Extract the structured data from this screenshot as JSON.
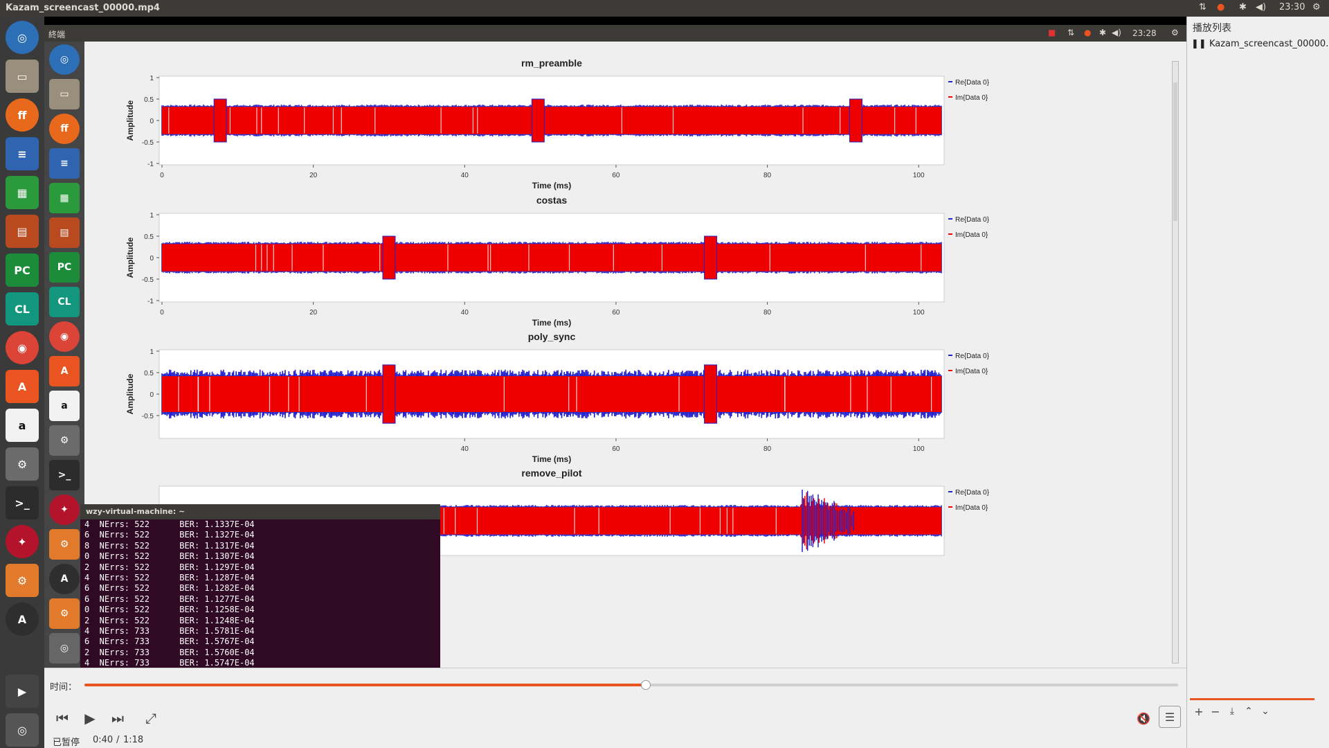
{
  "window": {
    "title": "Kazam_screencast_00000.mp4",
    "clock": "23:30"
  },
  "inner_screen": {
    "window_title": "終端",
    "clock": "23:28"
  },
  "colors": {
    "re_series": "#2222cc",
    "im_series": "#ee0000",
    "progress": "#e95420"
  },
  "plots": [
    {
      "title": "rm_preamble",
      "xlabel": "Time (ms)",
      "ylabel": "Amplitude",
      "legend": [
        "Re{Data 0}",
        "Im{Data 0}"
      ]
    },
    {
      "title": "costas",
      "xlabel": "Time (ms)",
      "ylabel": "Amplitude",
      "legend": [
        "Re{Data 0}",
        "Im{Data 0}"
      ]
    },
    {
      "title": "poly_sync",
      "xlabel": "Time (ms)",
      "ylabel": "Amplitude",
      "legend": [
        "Re{Data 0}",
        "Im{Data 0}"
      ]
    },
    {
      "title": "remove_pilot",
      "xlabel": "",
      "ylabel": "",
      "legend": [
        "Re{Data 0}",
        "Im{Data 0}"
      ]
    }
  ],
  "chart_data": [
    {
      "type": "line",
      "title": "rm_preamble",
      "xlabel": "Time (ms)",
      "ylabel": "Amplitude",
      "xlim": [
        0,
        103
      ],
      "ylim": [
        -1,
        1
      ],
      "xticks": [
        "0",
        "20",
        "40",
        "60",
        "80",
        "100"
      ],
      "yticks": [
        "1",
        "0.5",
        "0",
        "-0.5",
        "-1"
      ],
      "series": [
        {
          "name": "Re{Data 0}",
          "amplitude": 0.35
        },
        {
          "name": "Im{Data 0}",
          "amplitude": 0.35
        }
      ],
      "bursts_ms": [
        7.7,
        49.7,
        91.7
      ],
      "burst_amplitude": 0.5
    },
    {
      "type": "line",
      "title": "costas",
      "xlabel": "Time (ms)",
      "ylabel": "Amplitude",
      "xlim": [
        0,
        103
      ],
      "ylim": [
        -1,
        1
      ],
      "xticks": [
        "0",
        "20",
        "40",
        "60",
        "80",
        "100"
      ],
      "yticks": [
        "1",
        "0.5",
        "0",
        "-0.5",
        "-1"
      ],
      "series": [
        {
          "name": "Re{Data 0}",
          "amplitude": 0.35
        },
        {
          "name": "Im{Data 0}",
          "amplitude": 0.35
        }
      ],
      "bursts_ms": [
        30.0,
        72.5
      ],
      "burst_amplitude": 0.5
    },
    {
      "type": "line",
      "title": "poly_sync",
      "xlabel": "Time (ms)",
      "ylabel": "Amplitude",
      "xlim": [
        0,
        103
      ],
      "ylim": [
        -1,
        1
      ],
      "xticks": [
        "40",
        "60",
        "80",
        "100"
      ],
      "yticks": [
        "1",
        "0.5",
        "0",
        "-0.5"
      ],
      "series": [
        {
          "name": "Re{Data 0}",
          "amplitude": 0.5
        },
        {
          "name": "Im{Data 0}",
          "amplitude": 0.45
        }
      ],
      "bursts_ms": [
        30.0,
        72.5
      ],
      "burst_amplitude": 0.68
    },
    {
      "type": "line",
      "title": "remove_pilot",
      "xlabel": "",
      "ylabel": "",
      "series": [
        {
          "name": "Re{Data 0}",
          "amplitude": 0.35
        },
        {
          "name": "Im{Data 0}",
          "amplitude": 0.35
        }
      ],
      "burst_region_ms": [
        84.5,
        91.5
      ]
    }
  ],
  "terminal": {
    "title": "wzy-virtual-machine: ~",
    "lines": [
      "4  NErrs: 522      BER: 1.1337E-04",
      "6  NErrs: 522      BER: 1.1327E-04",
      "8  NErrs: 522      BER: 1.1317E-04",
      "0  NErrs: 522      BER: 1.1307E-04",
      "2  NErrs: 522      BER: 1.1297E-04",
      "4  NErrs: 522      BER: 1.1287E-04",
      "6  NErrs: 522      BER: 1.1282E-04",
      "6  NErrs: 522      BER: 1.1277E-04",
      "0  NErrs: 522      BER: 1.1258E-04",
      "2  NErrs: 522      BER: 1.1248E-04",
      "4  NErrs: 733      BER: 1.5781E-04",
      "6  NErrs: 733      BER: 1.5767E-04",
      "2  NErrs: 733      BER: 1.5760E-04",
      "4  NErrs: 733      BER: 1.5747E-04"
    ]
  },
  "player": {
    "time_label": "时间：",
    "status": "已暂停",
    "position": "0:40",
    "duration": "1:18",
    "progress_fraction": 0.513
  },
  "playlist": {
    "header": "播放列表",
    "items": [
      "Kazam_screencast_00000.mp4"
    ]
  }
}
